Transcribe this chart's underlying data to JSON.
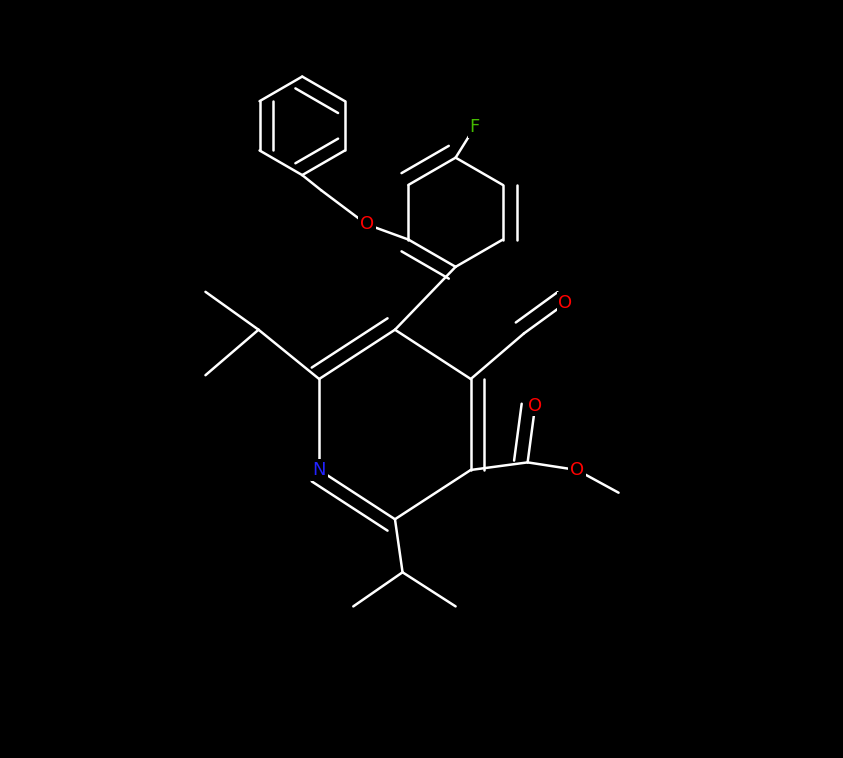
{
  "background_color": "#000000",
  "bond_color": "#ffffff",
  "atom_colors": {
    "N": "#2222ff",
    "O": "#ff0000",
    "F": "#44bb00",
    "C": "#ffffff"
  },
  "figsize": [
    8.43,
    7.58
  ],
  "dpi": 100,
  "lw": 1.8
}
